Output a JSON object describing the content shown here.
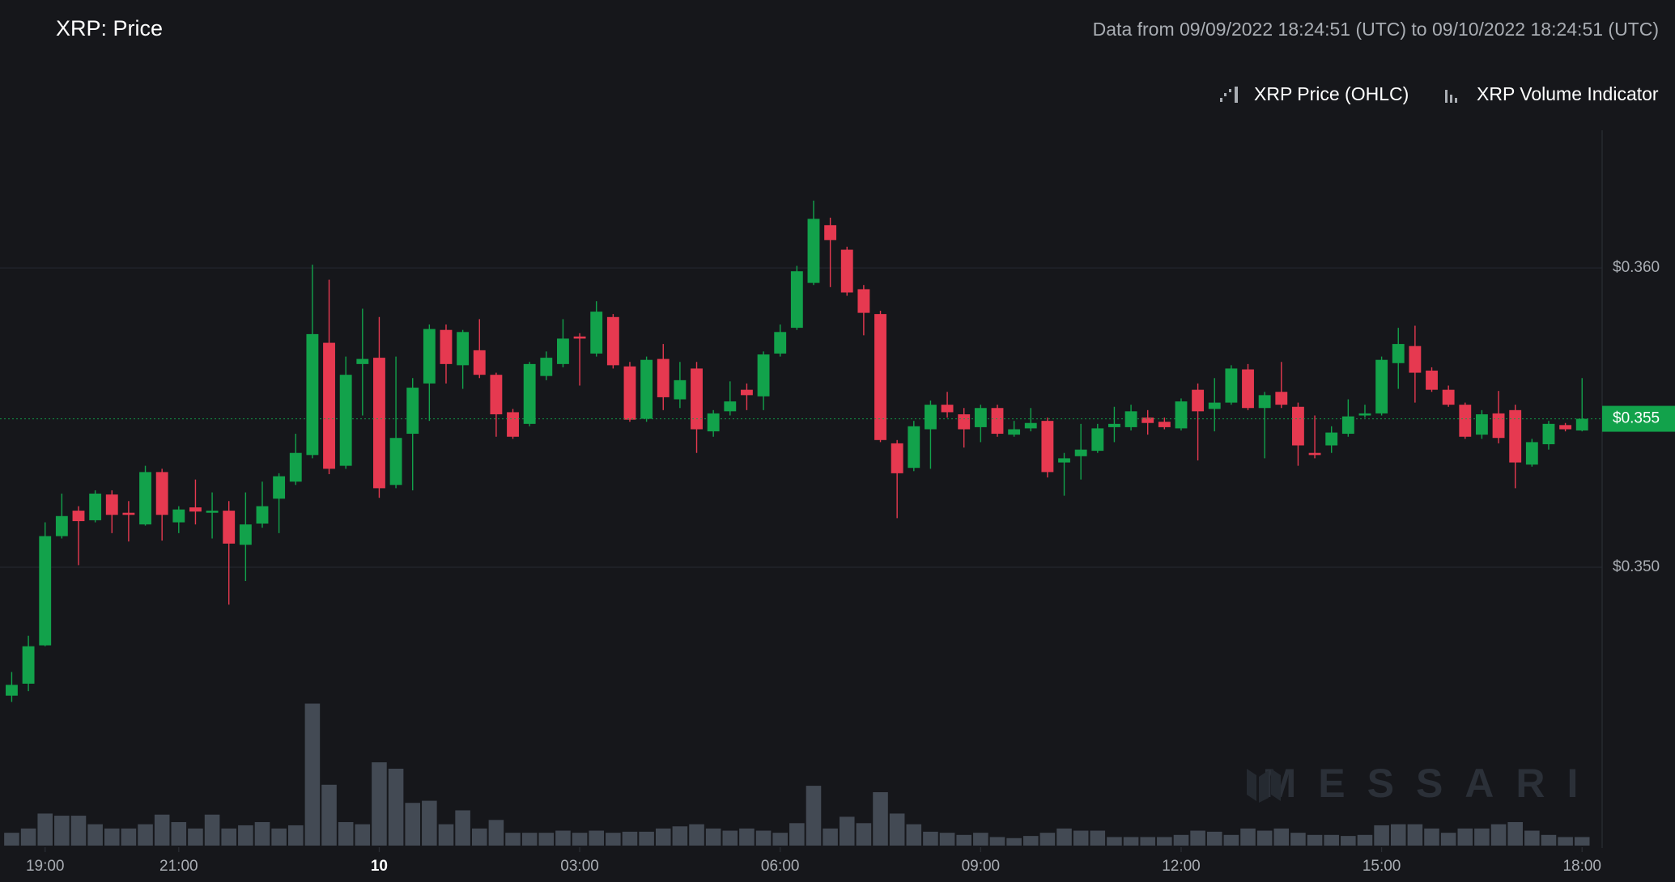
{
  "chart_data": {
    "type": "candlestick",
    "title": "XRP: Price",
    "subtitle": "Data from 09/09/2022 18:24:51 (UTC) to 09/10/2022 18:24:51 (UTC)",
    "watermark": "MESSARI",
    "last_price_label": "$0.355",
    "up_color": "#12a24b",
    "down_color": "#e63950",
    "x": [
      -5.5,
      -5.25,
      -5,
      -4.75,
      -4.5,
      -4.25,
      -4,
      -3.75,
      -3.5,
      -3.25,
      -3,
      -2.75,
      -2.5,
      -2.25,
      -2,
      -1.75,
      -1.5,
      -1.25,
      -1,
      -0.75,
      -0.5,
      -0.25,
      0,
      0.25,
      0.5,
      0.75,
      1,
      1.25,
      1.5,
      1.75,
      2,
      2.25,
      2.5,
      2.75,
      3,
      3.25,
      3.5,
      3.75,
      4,
      4.25,
      4.5,
      4.75,
      5,
      5.25,
      5.5,
      5.75,
      6,
      6.25,
      6.5,
      6.75,
      7,
      7.25,
      7.5,
      7.75,
      8,
      8.25,
      8.5,
      8.75,
      9,
      9.25,
      9.5,
      9.75,
      10,
      10.25,
      10.5,
      10.75,
      11,
      11.25,
      11.5,
      11.75,
      12,
      12.25,
      12.5,
      12.75,
      13,
      13.25,
      13.5,
      13.75,
      14,
      14.25,
      14.5,
      14.75,
      15,
      15.25,
      15.5,
      15.75,
      16,
      16.25,
      16.5,
      16.75,
      17,
      17.25,
      17.5,
      17.75,
      18
    ],
    "ohlc": {
      "name": "XRP Price (OHLC)",
      "open": [
        0.34571,
        0.34611,
        0.34739,
        0.35104,
        0.35189,
        0.35157,
        0.35243,
        0.35182,
        0.35143,
        0.35318,
        0.3515,
        0.352,
        0.35182,
        0.35189,
        0.35075,
        0.35146,
        0.35229,
        0.35286,
        0.35375,
        0.3575,
        0.35339,
        0.35679,
        0.357,
        0.35275,
        0.35446,
        0.35614,
        0.35793,
        0.35675,
        0.35725,
        0.35643,
        0.35518,
        0.35479,
        0.35639,
        0.35679,
        0.35771,
        0.35714,
        0.35836,
        0.35671,
        0.35496,
        0.35696,
        0.35561,
        0.35664,
        0.35454,
        0.35521,
        0.35593,
        0.35571,
        0.35714,
        0.358,
        0.3595,
        0.36143,
        0.36061,
        0.35929,
        0.35846,
        0.35414,
        0.35332,
        0.35461,
        0.35543,
        0.35511,
        0.35468,
        0.35532,
        0.35443,
        0.35464,
        0.35489,
        0.3535,
        0.35371,
        0.35389,
        0.35468,
        0.35468,
        0.355,
        0.35486,
        0.35464,
        0.35593,
        0.35529,
        0.3555,
        0.35661,
        0.35532,
        0.35586,
        0.35536,
        0.35382,
        0.35407,
        0.35446,
        0.35507,
        0.35514,
        0.35682,
        0.35739,
        0.35657,
        0.35593,
        0.35543,
        0.35443,
        0.35514,
        0.35525,
        0.35343,
        0.35411,
        0.35475,
        0.35457
      ],
      "high": [
        0.3465,
        0.34771,
        0.3515,
        0.35246,
        0.35204,
        0.35257,
        0.35257,
        0.35221,
        0.35339,
        0.35329,
        0.35204,
        0.35293,
        0.3525,
        0.35221,
        0.3525,
        0.35286,
        0.35314,
        0.35446,
        0.36011,
        0.35961,
        0.35704,
        0.35864,
        0.35836,
        0.35704,
        0.35632,
        0.35811,
        0.35811,
        0.35793,
        0.35829,
        0.3565,
        0.35529,
        0.35686,
        0.35721,
        0.35829,
        0.35782,
        0.35889,
        0.35846,
        0.35686,
        0.35704,
        0.35746,
        0.35686,
        0.35686,
        0.35525,
        0.35621,
        0.35614,
        0.35721,
        0.35811,
        0.36007,
        0.36225,
        0.36168,
        0.36071,
        0.35943,
        0.35857,
        0.35425,
        0.35489,
        0.35557,
        0.35586,
        0.35532,
        0.35543,
        0.35543,
        0.35489,
        0.35532,
        0.355,
        0.35382,
        0.35479,
        0.35479,
        0.35536,
        0.35543,
        0.35525,
        0.355,
        0.35564,
        0.35614,
        0.35632,
        0.35675,
        0.35679,
        0.35586,
        0.35686,
        0.3555,
        0.35507,
        0.35471,
        0.35561,
        0.35543,
        0.35704,
        0.358,
        0.35807,
        0.35668,
        0.35607,
        0.3555,
        0.35525,
        0.35589,
        0.35543,
        0.35429,
        0.35489,
        0.35482,
        0.35632
      ],
      "low": [
        0.3455,
        0.34586,
        0.34736,
        0.35096,
        0.35007,
        0.3515,
        0.35114,
        0.35086,
        0.35139,
        0.35089,
        0.35114,
        0.35143,
        0.35096,
        0.34875,
        0.34954,
        0.35132,
        0.35114,
        0.35275,
        0.35364,
        0.35311,
        0.35329,
        0.35507,
        0.35232,
        0.35264,
        0.35257,
        0.35489,
        0.35614,
        0.35596,
        0.35632,
        0.35436,
        0.35429,
        0.35471,
        0.35625,
        0.35668,
        0.35607,
        0.35704,
        0.35664,
        0.35486,
        0.35486,
        0.35525,
        0.35532,
        0.35382,
        0.35436,
        0.35507,
        0.35525,
        0.35525,
        0.35704,
        0.35793,
        0.35943,
        0.35936,
        0.35907,
        0.35775,
        0.35418,
        0.35164,
        0.35321,
        0.35329,
        0.355,
        0.354,
        0.35418,
        0.35436,
        0.35436,
        0.35454,
        0.353,
        0.35239,
        0.35293,
        0.35382,
        0.35418,
        0.35457,
        0.35443,
        0.35461,
        0.35457,
        0.35357,
        0.35454,
        0.35543,
        0.35525,
        0.35364,
        0.35532,
        0.35339,
        0.35364,
        0.35382,
        0.35436,
        0.355,
        0.35507,
        0.35596,
        0.3555,
        0.35586,
        0.35536,
        0.35429,
        0.35429,
        0.35414,
        0.35264,
        0.35336,
        0.35393,
        0.35454,
        0.35454
      ],
      "close": [
        0.34607,
        0.34736,
        0.35104,
        0.35171,
        0.35154,
        0.35246,
        0.35175,
        0.35175,
        0.35318,
        0.35175,
        0.35193,
        0.35186,
        0.35189,
        0.35079,
        0.35143,
        0.35204,
        0.35304,
        0.35382,
        0.35779,
        0.35329,
        0.35643,
        0.35696,
        0.35264,
        0.35432,
        0.356,
        0.35796,
        0.35679,
        0.35786,
        0.35643,
        0.35511,
        0.35436,
        0.35679,
        0.357,
        0.35764,
        0.35764,
        0.35854,
        0.35675,
        0.35493,
        0.35693,
        0.35568,
        0.35625,
        0.35461,
        0.35514,
        0.35554,
        0.35575,
        0.35711,
        0.35786,
        0.35989,
        0.36164,
        0.36093,
        0.35918,
        0.3585,
        0.35425,
        0.35314,
        0.35471,
        0.35543,
        0.35518,
        0.35461,
        0.35532,
        0.35446,
        0.35461,
        0.35482,
        0.35318,
        0.35364,
        0.35393,
        0.35464,
        0.35479,
        0.35521,
        0.35482,
        0.35468,
        0.35554,
        0.35521,
        0.3555,
        0.35664,
        0.35532,
        0.35575,
        0.35543,
        0.35407,
        0.35375,
        0.3545,
        0.35504,
        0.35514,
        0.35693,
        0.35746,
        0.3565,
        0.35593,
        0.35543,
        0.35436,
        0.35511,
        0.35432,
        0.3535,
        0.35418,
        0.35479,
        0.35461,
        0.35496
      ]
    },
    "volume": {
      "name": "XRP Volume Indicator",
      "color": "#434a54",
      "values": [
        12,
        16,
        30,
        28,
        28,
        20,
        16,
        16,
        20,
        29,
        22,
        16,
        29,
        16,
        19,
        22,
        16,
        19,
        133,
        57,
        22,
        20,
        78,
        72,
        40,
        42,
        20,
        33,
        16,
        24,
        12,
        12,
        12,
        14,
        12,
        14,
        12,
        13,
        13,
        16,
        18,
        20,
        16,
        14,
        16,
        14,
        12,
        21,
        56,
        16,
        27,
        21,
        50,
        30,
        20,
        13,
        12,
        10,
        12,
        8,
        7,
        9,
        12,
        16,
        14,
        14,
        8,
        8,
        8,
        8,
        10,
        14,
        13,
        10,
        16,
        14,
        16,
        12,
        10,
        10,
        9,
        10,
        19,
        20,
        20,
        16,
        12,
        16,
        16,
        20,
        22,
        14,
        10,
        8,
        8
      ]
    },
    "xlim": [
      -5.675,
      18.3
    ],
    "xticks": [
      {
        "value": -5,
        "label": "19:00"
      },
      {
        "value": -3,
        "label": "21:00"
      },
      {
        "value": 0,
        "label": "10"
      },
      {
        "value": 3,
        "label": "03:00"
      },
      {
        "value": 6,
        "label": "06:00"
      },
      {
        "value": 9,
        "label": "09:00"
      },
      {
        "value": 12,
        "label": "12:00"
      },
      {
        "value": 15,
        "label": "15:00"
      },
      {
        "value": 18,
        "label": "18:00"
      }
    ],
    "ylim": [
      0.3407,
      0.3646
    ],
    "yticks": [
      {
        "value": 0.35,
        "label": "$0.350"
      },
      {
        "value": 0.36,
        "label": "$0.360"
      }
    ],
    "volume_ylim": [
      0,
      670
    ],
    "grid": true
  }
}
